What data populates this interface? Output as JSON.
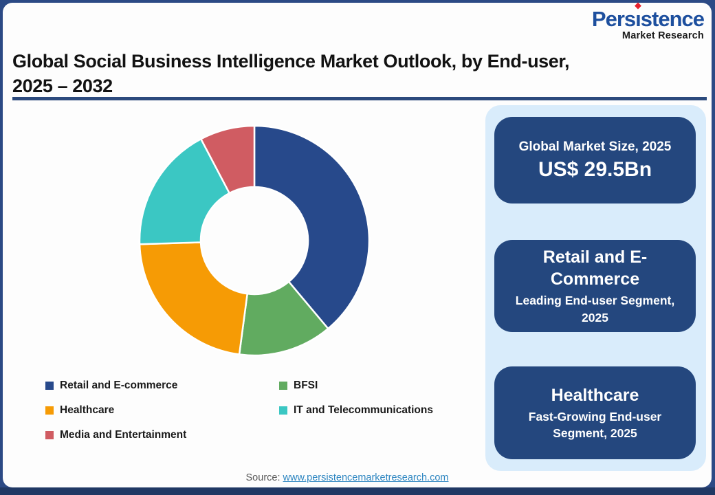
{
  "logo": {
    "text": "Persistence",
    "part_pre": "Pers",
    "part_i": "ı",
    "part_post": "stence",
    "subtitle": "Market Research",
    "brand_blue": "#1d4f9e",
    "brand_red": "#e8222d"
  },
  "title": {
    "line1": "Global Social Business Intelligence Market Outlook, by End-user,",
    "line2": "2025 – 2032"
  },
  "chart_data": {
    "type": "pie",
    "variant": "donut",
    "title": "Global Social Business Intelligence Market Outlook, by End-user, 2025 – 2032",
    "categories": [
      "Retail and E-commerce",
      "BFSI",
      "Healthcare",
      "IT and Telecommunications",
      "Media and Entertainment"
    ],
    "values_pct": [
      38.9,
      13.2,
      22.4,
      17.8,
      7.7
    ],
    "colors": [
      "#27498b",
      "#61ab60",
      "#f69b05",
      "#3bc7c3",
      "#d05c62"
    ],
    "start_angle_deg": 0,
    "direction": "clockwise",
    "inner_radius_ratio": 0.47,
    "legend_position": "bottom-left",
    "legend_columns": 2
  },
  "sidebar": {
    "panel_color": "#d9ecfb",
    "box_color": "#24477e",
    "box1": {
      "kicker": "Global Market Size, 2025",
      "value": "US$ 29.5Bn"
    },
    "box2": {
      "title": "Retail and E-Commerce",
      "subtitle": "Leading End-user Segment, 2025"
    },
    "box3": {
      "title": "Healthcare",
      "subtitle": "Fast-Growing End-user Segment, 2025"
    }
  },
  "source": {
    "label": "Source:",
    "link": "www.persistencemarketresearch.com"
  },
  "theme": {
    "frame_navy": "#2c4a85",
    "bottom_bar_navy": "#203864",
    "title_rule_navy": "#2c4a7d",
    "link_blue": "#2e86c1"
  }
}
